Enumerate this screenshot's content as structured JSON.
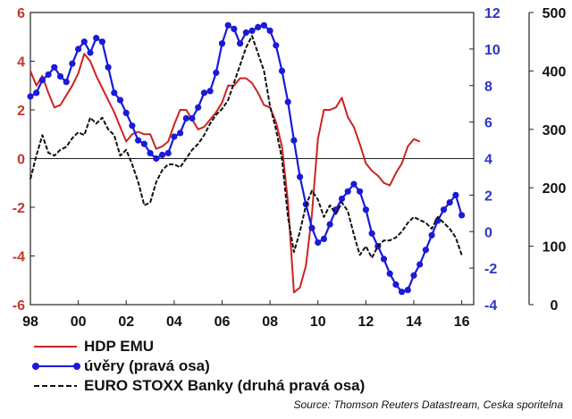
{
  "chart_data": {
    "type": "line",
    "x_ticks": [
      "98",
      "00",
      "02",
      "04",
      "06",
      "08",
      "10",
      "12",
      "14",
      "16"
    ],
    "axes": {
      "left": {
        "ylim": [
          -6,
          6
        ],
        "ticks": [
          6,
          4,
          2,
          0,
          -2,
          -4,
          -6
        ],
        "color": "#c0392b"
      },
      "mid": {
        "ylim": [
          -4,
          12
        ],
        "ticks": [
          12,
          10,
          8,
          6,
          4,
          2,
          0,
          -2,
          -4
        ],
        "color": "#2b35c4"
      },
      "right": {
        "ylim": [
          0,
          500
        ],
        "ticks": [
          500,
          400,
          300,
          200,
          100,
          0
        ],
        "color": "#111111"
      }
    },
    "xlim": [
      1998,
      2016.5
    ],
    "zero_line": 0,
    "series": [
      {
        "name": "HDP EMU",
        "axis": "left",
        "color": "#cc2222",
        "style": "solid",
        "points": [
          [
            1998.0,
            3.6
          ],
          [
            1998.25,
            3.0
          ],
          [
            1998.5,
            3.4
          ],
          [
            1998.75,
            2.7
          ],
          [
            1999.0,
            2.1
          ],
          [
            1999.25,
            2.2
          ],
          [
            1999.5,
            2.6
          ],
          [
            1999.75,
            3.0
          ],
          [
            2000.0,
            3.5
          ],
          [
            2000.25,
            4.3
          ],
          [
            2000.5,
            4.0
          ],
          [
            2000.75,
            3.4
          ],
          [
            2001.0,
            2.9
          ],
          [
            2001.25,
            2.4
          ],
          [
            2001.5,
            1.9
          ],
          [
            2001.75,
            1.3
          ],
          [
            2002.0,
            0.7
          ],
          [
            2002.25,
            1.0
          ],
          [
            2002.5,
            1.1
          ],
          [
            2002.75,
            1.0
          ],
          [
            2003.0,
            1.0
          ],
          [
            2003.25,
            0.4
          ],
          [
            2003.5,
            0.5
          ],
          [
            2003.75,
            0.7
          ],
          [
            2004.0,
            1.4
          ],
          [
            2004.25,
            2.0
          ],
          [
            2004.5,
            2.0
          ],
          [
            2004.75,
            1.6
          ],
          [
            2005.0,
            1.2
          ],
          [
            2005.25,
            1.3
          ],
          [
            2005.5,
            1.6
          ],
          [
            2005.75,
            1.9
          ],
          [
            2006.0,
            2.3
          ],
          [
            2006.25,
            3.0
          ],
          [
            2006.5,
            3.0
          ],
          [
            2006.75,
            3.3
          ],
          [
            2007.0,
            3.3
          ],
          [
            2007.25,
            3.1
          ],
          [
            2007.5,
            2.7
          ],
          [
            2007.75,
            2.2
          ],
          [
            2008.0,
            2.1
          ],
          [
            2008.25,
            1.5
          ],
          [
            2008.5,
            0.5
          ],
          [
            2008.75,
            -1.8
          ],
          [
            2009.0,
            -5.5
          ],
          [
            2009.25,
            -5.3
          ],
          [
            2009.5,
            -4.4
          ],
          [
            2009.75,
            -2.3
          ],
          [
            2010.0,
            0.8
          ],
          [
            2010.25,
            2.0
          ],
          [
            2010.5,
            2.0
          ],
          [
            2010.75,
            2.1
          ],
          [
            2011.0,
            2.5
          ],
          [
            2011.25,
            1.7
          ],
          [
            2011.5,
            1.3
          ],
          [
            2011.75,
            0.6
          ],
          [
            2012.0,
            -0.2
          ],
          [
            2012.25,
            -0.5
          ],
          [
            2012.5,
            -0.7
          ],
          [
            2012.75,
            -1.0
          ],
          [
            2013.0,
            -1.1
          ],
          [
            2013.25,
            -0.6
          ],
          [
            2013.5,
            -0.2
          ],
          [
            2013.75,
            0.5
          ],
          [
            2014.0,
            0.8
          ],
          [
            2014.25,
            0.7
          ]
        ]
      },
      {
        "name": "úvěry (pravá osa)",
        "axis": "mid",
        "color": "#1a1ad8",
        "style": "dots",
        "points": [
          [
            1998.0,
            7.4
          ],
          [
            1998.25,
            7.6
          ],
          [
            1998.5,
            8.3
          ],
          [
            1998.75,
            8.6
          ],
          [
            1999.0,
            9.0
          ],
          [
            1999.25,
            8.5
          ],
          [
            1999.5,
            8.2
          ],
          [
            1999.75,
            9.2
          ],
          [
            2000.0,
            10.0
          ],
          [
            2000.25,
            10.4
          ],
          [
            2000.5,
            9.8
          ],
          [
            2000.75,
            10.6
          ],
          [
            2001.0,
            10.4
          ],
          [
            2001.25,
            9.0
          ],
          [
            2001.5,
            7.6
          ],
          [
            2001.75,
            7.2
          ],
          [
            2002.0,
            6.5
          ],
          [
            2002.25,
            5.8
          ],
          [
            2002.5,
            5.0
          ],
          [
            2002.75,
            4.8
          ],
          [
            2003.0,
            4.3
          ],
          [
            2003.25,
            4.0
          ],
          [
            2003.5,
            4.2
          ],
          [
            2003.75,
            4.3
          ],
          [
            2004.0,
            5.2
          ],
          [
            2004.25,
            5.4
          ],
          [
            2004.5,
            6.2
          ],
          [
            2004.75,
            6.2
          ],
          [
            2005.0,
            6.8
          ],
          [
            2005.25,
            7.6
          ],
          [
            2005.5,
            7.7
          ],
          [
            2005.75,
            8.7
          ],
          [
            2006.0,
            10.3
          ],
          [
            2006.25,
            11.3
          ],
          [
            2006.5,
            11.1
          ],
          [
            2006.75,
            10.3
          ],
          [
            2007.0,
            10.9
          ],
          [
            2007.25,
            11.0
          ],
          [
            2007.5,
            11.2
          ],
          [
            2007.75,
            11.3
          ],
          [
            2008.0,
            11.0
          ],
          [
            2008.25,
            10.2
          ],
          [
            2008.5,
            8.8
          ],
          [
            2008.75,
            7.1
          ],
          [
            2009.0,
            5.0
          ],
          [
            2009.25,
            3.0
          ],
          [
            2009.5,
            1.5
          ],
          [
            2009.75,
            0.2
          ],
          [
            2010.0,
            -0.6
          ],
          [
            2010.25,
            -0.4
          ],
          [
            2010.5,
            0.4
          ],
          [
            2010.75,
            1.2
          ],
          [
            2011.0,
            1.8
          ],
          [
            2011.25,
            2.2
          ],
          [
            2011.5,
            2.6
          ],
          [
            2011.75,
            2.2
          ],
          [
            2012.0,
            1.2
          ],
          [
            2012.25,
            -0.1
          ],
          [
            2012.5,
            -0.8
          ],
          [
            2012.75,
            -1.5
          ],
          [
            2013.0,
            -2.3
          ],
          [
            2013.25,
            -2.9
          ],
          [
            2013.5,
            -3.3
          ],
          [
            2013.75,
            -3.2
          ],
          [
            2014.0,
            -2.4
          ],
          [
            2014.25,
            -1.8
          ],
          [
            2014.5,
            -1.0
          ],
          [
            2014.75,
            -0.2
          ],
          [
            2015.0,
            0.6
          ],
          [
            2015.25,
            1.2
          ],
          [
            2015.5,
            1.6
          ],
          [
            2015.75,
            2.0
          ],
          [
            2016.0,
            0.9
          ]
        ]
      },
      {
        "name": "EURO STOXX Banky (druhá pravá osa)",
        "axis": "right",
        "color": "#111111",
        "style": "dashed",
        "points": [
          [
            1998.0,
            215
          ],
          [
            1998.25,
            255
          ],
          [
            1998.5,
            290
          ],
          [
            1998.75,
            260
          ],
          [
            1999.0,
            255
          ],
          [
            1999.25,
            265
          ],
          [
            1999.5,
            270
          ],
          [
            1999.75,
            285
          ],
          [
            2000.0,
            295
          ],
          [
            2000.25,
            290
          ],
          [
            2000.5,
            320
          ],
          [
            2000.75,
            310
          ],
          [
            2001.0,
            320
          ],
          [
            2001.25,
            300
          ],
          [
            2001.5,
            290
          ],
          [
            2001.75,
            255
          ],
          [
            2002.0,
            265
          ],
          [
            2002.25,
            240
          ],
          [
            2002.5,
            210
          ],
          [
            2002.75,
            170
          ],
          [
            2003.0,
            175
          ],
          [
            2003.25,
            210
          ],
          [
            2003.5,
            230
          ],
          [
            2003.75,
            240
          ],
          [
            2004.0,
            240
          ],
          [
            2004.25,
            235
          ],
          [
            2004.5,
            250
          ],
          [
            2004.75,
            265
          ],
          [
            2005.0,
            275
          ],
          [
            2005.25,
            290
          ],
          [
            2005.5,
            310
          ],
          [
            2005.75,
            325
          ],
          [
            2006.0,
            335
          ],
          [
            2006.25,
            350
          ],
          [
            2006.5,
            380
          ],
          [
            2006.75,
            410
          ],
          [
            2007.0,
            440
          ],
          [
            2007.25,
            460
          ],
          [
            2007.5,
            430
          ],
          [
            2007.75,
            400
          ],
          [
            2008.0,
            340
          ],
          [
            2008.25,
            300
          ],
          [
            2008.5,
            250
          ],
          [
            2008.75,
            150
          ],
          [
            2009.0,
            90
          ],
          [
            2009.25,
            125
          ],
          [
            2009.5,
            170
          ],
          [
            2009.75,
            195
          ],
          [
            2010.0,
            180
          ],
          [
            2010.25,
            150
          ],
          [
            2010.5,
            170
          ],
          [
            2010.75,
            155
          ],
          [
            2011.0,
            175
          ],
          [
            2011.25,
            160
          ],
          [
            2011.5,
            120
          ],
          [
            2011.75,
            85
          ],
          [
            2012.0,
            100
          ],
          [
            2012.25,
            80
          ],
          [
            2012.5,
            100
          ],
          [
            2012.75,
            110
          ],
          [
            2013.0,
            110
          ],
          [
            2013.25,
            115
          ],
          [
            2013.5,
            125
          ],
          [
            2013.75,
            140
          ],
          [
            2014.0,
            150
          ],
          [
            2014.25,
            145
          ],
          [
            2014.5,
            140
          ],
          [
            2014.75,
            130
          ],
          [
            2015.0,
            150
          ],
          [
            2015.25,
            140
          ],
          [
            2015.5,
            130
          ],
          [
            2015.75,
            115
          ],
          [
            2016.0,
            85
          ]
        ]
      }
    ],
    "legend": [
      {
        "label": "HDP EMU",
        "color": "#cc2222",
        "style": "solid"
      },
      {
        "label": "úvěry (pravá osa)",
        "color": "#1a1ad8",
        "style": "dots"
      },
      {
        "label": "EURO STOXX Banky (druhá pravá osa)",
        "color": "#111111",
        "style": "dashed"
      }
    ]
  },
  "source": "Source: Thomson Reuters Datastream, Ceska sporitelna"
}
